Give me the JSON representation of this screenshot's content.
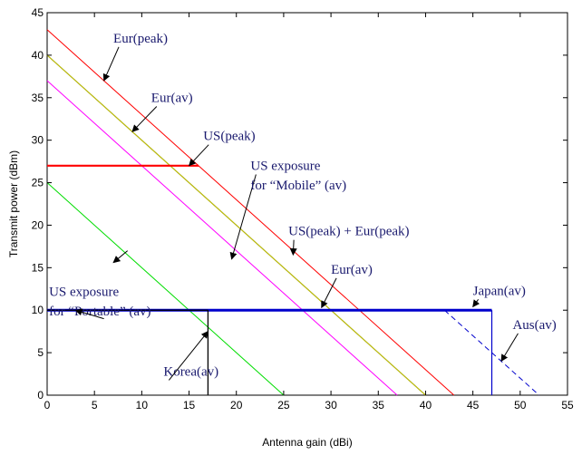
{
  "chart_data": {
    "type": "line",
    "xlabel": "Antenna gain (dBi)",
    "ylabel": "Transmit power (dBm)",
    "xlim": [
      0,
      55
    ],
    "ylim": [
      0,
      45
    ],
    "xticks": [
      0,
      5,
      10,
      15,
      20,
      25,
      30,
      35,
      40,
      45,
      50,
      55
    ],
    "yticks": [
      0,
      5,
      10,
      15,
      20,
      25,
      30,
      35,
      40,
      45
    ],
    "grid": false,
    "legend": "none",
    "series": [
      {
        "color": "#ff0000",
        "width": 1,
        "x": [
          0,
          43
        ],
        "y": [
          43,
          0
        ]
      },
      {
        "color": "#000000",
        "width": 1,
        "x": [
          0,
          40
        ],
        "y": [
          40,
          0
        ]
      },
      {
        "color": "#cccc00",
        "width": 1,
        "x": [
          0,
          40
        ],
        "y": [
          40,
          0
        ]
      },
      {
        "color": "#ff00ff",
        "width": 1,
        "x": [
          0,
          37
        ],
        "y": [
          37,
          0
        ]
      },
      {
        "color": "#00dd00",
        "width": 1,
        "x": [
          0,
          25
        ],
        "y": [
          25,
          0
        ]
      },
      {
        "color": "#ff0000",
        "width": 2.2,
        "x": [
          0,
          16
        ],
        "y": [
          27,
          27
        ]
      },
      {
        "color": "#0000cc",
        "width": 3,
        "x": [
          0,
          47
        ],
        "y": [
          10,
          10
        ]
      },
      {
        "color": "#0000cc",
        "width": 1.2,
        "x": [
          47,
          47
        ],
        "y": [
          10,
          0
        ]
      },
      {
        "color": "#000000",
        "width": 1.3,
        "x": [
          0,
          17
        ],
        "y": [
          10,
          10
        ]
      },
      {
        "color": "#000000",
        "width": 1.3,
        "x": [
          17,
          17
        ],
        "y": [
          10,
          0
        ]
      },
      {
        "color": "#0000cc",
        "width": 1,
        "dash": "6,4",
        "x": [
          42,
          52
        ],
        "y": [
          10,
          0
        ]
      }
    ],
    "annotations": [
      {
        "text": "Eur(peak)",
        "tx": 7,
        "ty": 41.5,
        "anchor": "start",
        "ax": 6,
        "ay": 37
      },
      {
        "text": "Eur(av)",
        "tx": 11,
        "ty": 34.5,
        "anchor": "start",
        "ax": 9,
        "ay": 31
      },
      {
        "text": "US(peak)",
        "tx": 16.5,
        "ty": 30,
        "anchor": "start",
        "ax": 15,
        "ay": 27
      },
      {
        "text": "US exposure",
        "tx": 21.5,
        "ty": 26.5,
        "anchor": "start",
        "ax": 19.5,
        "ay": 16
      },
      {
        "text": "for “Mobile” (av)",
        "tx": 21.5,
        "ty": 24.2,
        "anchor": "start"
      },
      {
        "text": "US(peak) + Eur(peak)",
        "tx": 25.5,
        "ty": 18.8,
        "anchor": "start",
        "ax": 26,
        "ay": 16.5
      },
      {
        "text": "Eur(av)",
        "tx": 30,
        "ty": 14.3,
        "anchor": "start",
        "ax": 29,
        "ay": 10.3
      },
      {
        "text": "US exposure",
        "tx": 0.2,
        "ty": 11.7,
        "anchor": "start"
      },
      {
        "text": "for “Portable” (av)",
        "tx": 0.2,
        "ty": 9.4,
        "anchor": "start"
      },
      {
        "text": "Japan(av)",
        "tx": 45,
        "ty": 11.8,
        "anchor": "start",
        "ax": 45,
        "ay": 10.4
      },
      {
        "text": "Aus(av)",
        "tx": 49.2,
        "ty": 7.8,
        "anchor": "start",
        "ax": 48,
        "ay": 4
      },
      {
        "text": "Korea(av)",
        "tx": 12.3,
        "ty": 2.3,
        "anchor": "start",
        "ax": 17,
        "ay": 7.5
      }
    ],
    "arrows_extra": [
      {
        "from": [
          8.5,
          17
        ],
        "to": [
          7,
          15.6
        ]
      },
      {
        "from": [
          6,
          9
        ],
        "to": [
          3,
          10
        ]
      }
    ]
  }
}
